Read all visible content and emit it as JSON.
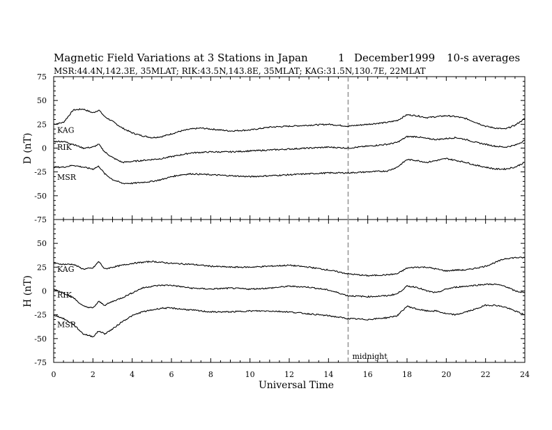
{
  "header": {
    "title": "Magnetic Field Variations at 3 Stations in Japan",
    "day": "1",
    "date": "December1999",
    "averages": "10-s averages",
    "subtitle": "MSR:44.4N,142.3E, 35MLAT;   RIK:43.5N,143.8E, 35MLAT;   KAG:31.5N,130.7E, 22MLAT"
  },
  "chart_data": [
    {
      "type": "line",
      "panel": "D",
      "ylabel": "D (nT)",
      "xlim": [
        0,
        24
      ],
      "ylim": [
        -75,
        75
      ],
      "yticks": [
        75,
        50,
        25,
        0,
        -25,
        -50,
        -75
      ],
      "xticks": [
        0,
        2,
        4,
        6,
        8,
        10,
        12,
        14,
        16,
        18,
        20,
        22,
        24
      ],
      "series": [
        {
          "name": "KAG",
          "x": [
            0,
            0.5,
            1,
            1.5,
            2,
            2.3,
            2.6,
            3,
            3.5,
            4,
            4.5,
            5,
            5.5,
            6,
            6.5,
            7,
            7.5,
            8,
            9,
            10,
            11,
            12,
            13,
            14,
            15,
            16,
            17,
            17.5,
            18,
            18.5,
            19,
            19.5,
            20,
            20.5,
            21,
            21.5,
            22,
            22.5,
            23,
            23.5,
            24
          ],
          "values": [
            25,
            27,
            40,
            41,
            37,
            40,
            33,
            28,
            21,
            16,
            13,
            11,
            12,
            15,
            18,
            20,
            21,
            20,
            18,
            19,
            22,
            23,
            24,
            25,
            23,
            25,
            27,
            29,
            35,
            34,
            32,
            33,
            34,
            33,
            31,
            27,
            23,
            21,
            20,
            24,
            31
          ]
        },
        {
          "name": "RIK",
          "x": [
            0,
            0.5,
            1,
            1.5,
            2,
            2.3,
            2.6,
            3,
            3.5,
            4,
            4.5,
            5,
            5.5,
            6,
            6.5,
            7,
            8,
            9,
            10,
            11,
            12,
            13,
            14,
            15,
            16,
            17,
            17.5,
            18,
            18.5,
            19,
            19.5,
            20,
            20.5,
            21,
            21.5,
            22,
            22.5,
            23,
            23.5,
            24
          ],
          "values": [
            7,
            7,
            4,
            0,
            1,
            4,
            -4,
            -10,
            -15,
            -14,
            -13,
            -12,
            -11,
            -9,
            -7,
            -5,
            -4,
            -4,
            -3,
            -2,
            -1,
            0,
            1,
            0,
            2,
            4,
            6,
            12,
            12,
            10,
            9,
            10,
            11,
            9,
            6,
            4,
            2,
            1,
            3,
            8
          ]
        },
        {
          "name": "MSR",
          "x": [
            0,
            0.5,
            1,
            1.5,
            2,
            2.3,
            2.6,
            3,
            3.5,
            4,
            4.5,
            5,
            5.5,
            6,
            6.5,
            7,
            8,
            9,
            10,
            11,
            12,
            13,
            14,
            15,
            16,
            17,
            17.5,
            18,
            18.5,
            19,
            19.5,
            20,
            20.5,
            21,
            21.5,
            22,
            22.5,
            23,
            23.5,
            24
          ],
          "values": [
            -20,
            -20,
            -18,
            -20,
            -22,
            -19,
            -27,
            -33,
            -37,
            -37,
            -36,
            -35,
            -33,
            -30,
            -28,
            -27,
            -28,
            -29,
            -30,
            -29,
            -28,
            -27,
            -26,
            -26,
            -25,
            -24,
            -20,
            -12,
            -13,
            -15,
            -13,
            -11,
            -13,
            -15,
            -18,
            -20,
            -22,
            -22,
            -20,
            -15
          ]
        }
      ]
    },
    {
      "type": "line",
      "panel": "H",
      "ylabel": "H (nT)",
      "xlabel": "Universal Time",
      "xlim": [
        0,
        24
      ],
      "ylim": [
        -75,
        75
      ],
      "yticks": [
        50,
        25,
        0,
        -25,
        -50,
        -75
      ],
      "xticks": [
        0,
        2,
        4,
        6,
        8,
        10,
        12,
        14,
        16,
        18,
        20,
        22,
        24
      ],
      "annotation": {
        "text": "midnight",
        "x": 15
      },
      "series": [
        {
          "name": "KAG",
          "x": [
            0,
            0.5,
            1,
            1.5,
            2,
            2.3,
            2.6,
            3,
            3.5,
            4,
            4.5,
            5,
            5.5,
            6,
            7,
            8,
            9,
            10,
            11,
            12,
            13,
            14,
            15,
            16,
            17,
            17.5,
            18,
            18.5,
            19,
            19.5,
            20,
            20.5,
            21,
            21.5,
            22,
            22.5,
            23,
            23.5,
            24
          ],
          "values": [
            29,
            28,
            28,
            23,
            24,
            31,
            23,
            25,
            27,
            29,
            30,
            31,
            30,
            29,
            28,
            26,
            25,
            25,
            26,
            27,
            25,
            22,
            18,
            16,
            17,
            18,
            24,
            25,
            25,
            23,
            21,
            22,
            22,
            24,
            26,
            30,
            34,
            35,
            35
          ]
        },
        {
          "name": "RIK",
          "x": [
            0,
            0.5,
            1,
            1.5,
            2,
            2.3,
            2.6,
            3,
            3.5,
            4,
            4.5,
            5,
            5.5,
            6,
            7,
            8,
            9,
            10,
            11,
            12,
            13,
            14,
            15,
            16,
            17,
            17.5,
            18,
            18.5,
            19,
            19.5,
            20,
            20.5,
            21,
            21.5,
            22,
            22.5,
            23,
            23.5,
            24
          ],
          "values": [
            2,
            -2,
            -7,
            -16,
            -18,
            -11,
            -15,
            -11,
            -7,
            -2,
            3,
            5,
            6,
            6,
            3,
            2,
            3,
            2,
            3,
            5,
            4,
            1,
            -5,
            -6,
            -5,
            -3,
            5,
            4,
            0,
            -2,
            2,
            4,
            5,
            6,
            7,
            7,
            5,
            0,
            -2
          ]
        },
        {
          "name": "MSR",
          "x": [
            0,
            0.5,
            1,
            1.5,
            2,
            2.3,
            2.6,
            3,
            3.5,
            4,
            4.5,
            5,
            5.5,
            6,
            7,
            8,
            9,
            10,
            11,
            12,
            13,
            14,
            15,
            16,
            17,
            17.5,
            18,
            18.5,
            19,
            19.5,
            20,
            20.5,
            21,
            21.5,
            22,
            22.5,
            23,
            23.5,
            24
          ],
          "values": [
            -25,
            -29,
            -35,
            -45,
            -48,
            -42,
            -45,
            -40,
            -32,
            -26,
            -22,
            -20,
            -18,
            -18,
            -20,
            -22,
            -22,
            -21,
            -21,
            -22,
            -24,
            -26,
            -29,
            -30,
            -28,
            -26,
            -16,
            -19,
            -21,
            -21,
            -24,
            -25,
            -22,
            -19,
            -15,
            -15,
            -17,
            -21,
            -25
          ]
        }
      ]
    }
  ]
}
